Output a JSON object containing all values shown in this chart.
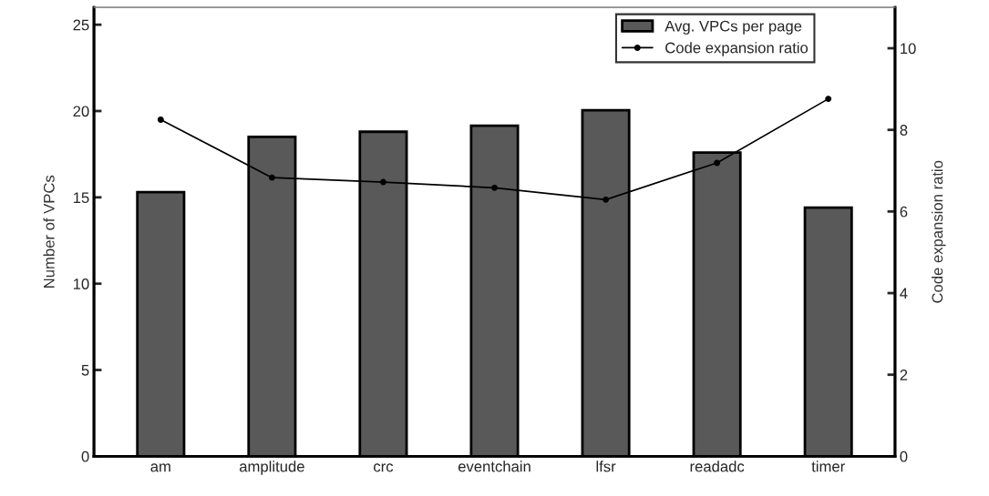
{
  "chart_data": {
    "type": "bar",
    "categories": [
      "am",
      "amplitude",
      "crc",
      "eventchain",
      "lfsr",
      "readadc",
      "timer"
    ],
    "ylabel": "Number of VPCs",
    "y2label": "Code expansion ratio",
    "ylim": [
      0,
      26
    ],
    "yticks": [
      0,
      5,
      10,
      15,
      20,
      25
    ],
    "y2lim": [
      0,
      11
    ],
    "y2ticks": [
      0,
      2,
      4,
      6,
      8,
      10
    ],
    "grid": false,
    "legend": "top right",
    "marker": "circle",
    "series": [
      {
        "name": "Avg. VPCs per page",
        "color": "#595959",
        "values": [
          15.3,
          18.5,
          18.8,
          19.15,
          20.05,
          17.6,
          14.4
        ]
      },
      {
        "name": "Code expansion ratio",
        "type": "line",
        "axis": "y2",
        "color": "#000000",
        "values": [
          8.25,
          6.83,
          6.72,
          6.58,
          6.29,
          7.19,
          8.76
        ]
      }
    ]
  }
}
